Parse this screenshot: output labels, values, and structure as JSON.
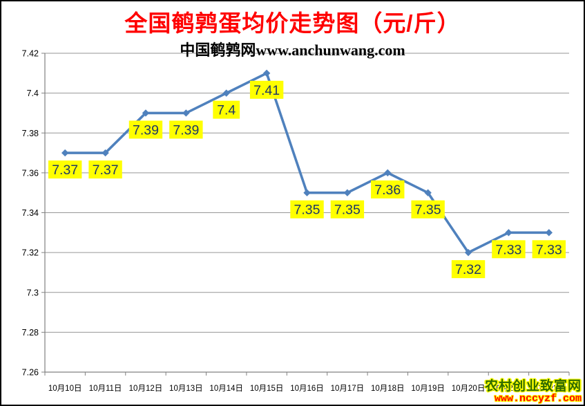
{
  "header": {
    "title": "全国鹌鹑蛋均价走势图（元/斤）",
    "title_color": "#FF0000",
    "subtitle": "中国鹌鹑网www.anchunwang.com"
  },
  "watermark": {
    "line1": "农村创业致富网",
    "line1_color": "#2F6B00",
    "line2": "www.nccyzf.com",
    "line2_color": "#FF0000",
    "outline_color": "#FFFF00"
  },
  "chart_data": {
    "type": "line",
    "title": "全国鹌鹑蛋均价走势图（元/斤）",
    "subtitle": "中国鹌鹑网www.anchunwang.com",
    "categories": [
      "10月10日",
      "10月11日",
      "10月12日",
      "10月13日",
      "10月14日",
      "10月15日",
      "10月16日",
      "10月17日",
      "10月18日",
      "10月19日",
      "10月20日",
      "10月21日",
      "10月22日"
    ],
    "values": [
      7.37,
      7.37,
      7.39,
      7.39,
      7.4,
      7.41,
      7.35,
      7.35,
      7.36,
      7.35,
      7.32,
      7.33,
      7.33
    ],
    "point_labels": [
      "7.37",
      "7.37",
      "7.39",
      "7.39",
      "7.4",
      "7.41",
      "7.35",
      "7.35",
      "7.36",
      "7.35",
      "7.32",
      "7.33",
      "7.33"
    ],
    "xlabel": "",
    "ylabel": "",
    "ylim": [
      7.26,
      7.42
    ],
    "ytick_step": 0.02,
    "yticks": [
      "7.42",
      "7.4",
      "7.38",
      "7.36",
      "7.34",
      "7.32",
      "7.3",
      "7.28",
      "7.26"
    ],
    "grid": true,
    "legend_position": "none",
    "marker": "diamond",
    "line_color": "#4F81BD",
    "marker_color": "#4F81BD",
    "label_bg_color": "#FFFF00",
    "label_text_color": "#1F3864",
    "grid_color": "#969696",
    "axis_color": "#808080",
    "tick_label_color": "#000000"
  }
}
